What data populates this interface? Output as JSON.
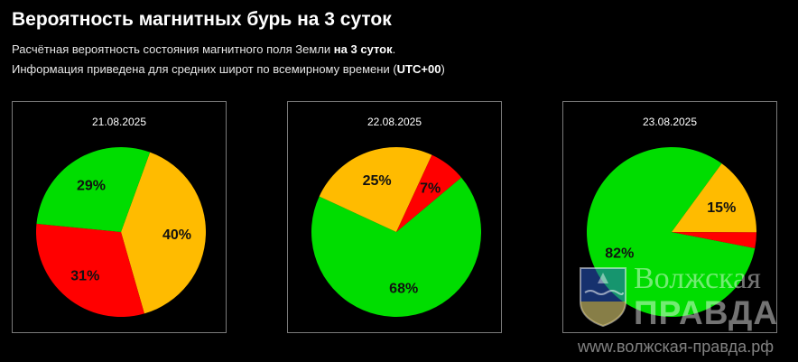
{
  "header": {
    "title": "Вероятность магнитных бурь на 3 суток",
    "line1_prefix": "Расчётная вероятность состояния магнитного поля Земли ",
    "line1_bold": "на 3 суток",
    "line1_suffix": ".",
    "line2_prefix": "Информация приведена для средних широт по всемирному времени (",
    "line2_bold": "UTC+00",
    "line2_suffix": ")"
  },
  "colors": {
    "green": "#00dd00",
    "orange": "#ffbb00",
    "red": "#ff0000"
  },
  "chart_data": [
    {
      "type": "pie",
      "title": "21.08.2025",
      "slices": [
        {
          "color": "orange",
          "value": 40,
          "label": "40%"
        },
        {
          "color": "red",
          "value": 31,
          "label": "31%"
        },
        {
          "color": "green",
          "value": 29,
          "label": "29%"
        }
      ]
    },
    {
      "type": "pie",
      "title": "22.08.2025",
      "slices": [
        {
          "color": "green",
          "value": 68,
          "label": "68%"
        },
        {
          "color": "orange",
          "value": 25,
          "label": "25%"
        },
        {
          "color": "red",
          "value": 7,
          "label": "7%"
        }
      ]
    },
    {
      "type": "pie",
      "title": "23.08.2025",
      "slices": [
        {
          "color": "green",
          "value": 82,
          "label": "82%"
        },
        {
          "color": "orange",
          "value": 15,
          "label": "15%"
        },
        {
          "color": "red",
          "value": 3,
          "label": ""
        }
      ]
    }
  ],
  "watermark": {
    "line1": "Волжская",
    "line2": "ПРАВДА",
    "url": "www.волжская-правда.рф",
    "emblem_icon": "city-coat-of-arms-icon"
  }
}
